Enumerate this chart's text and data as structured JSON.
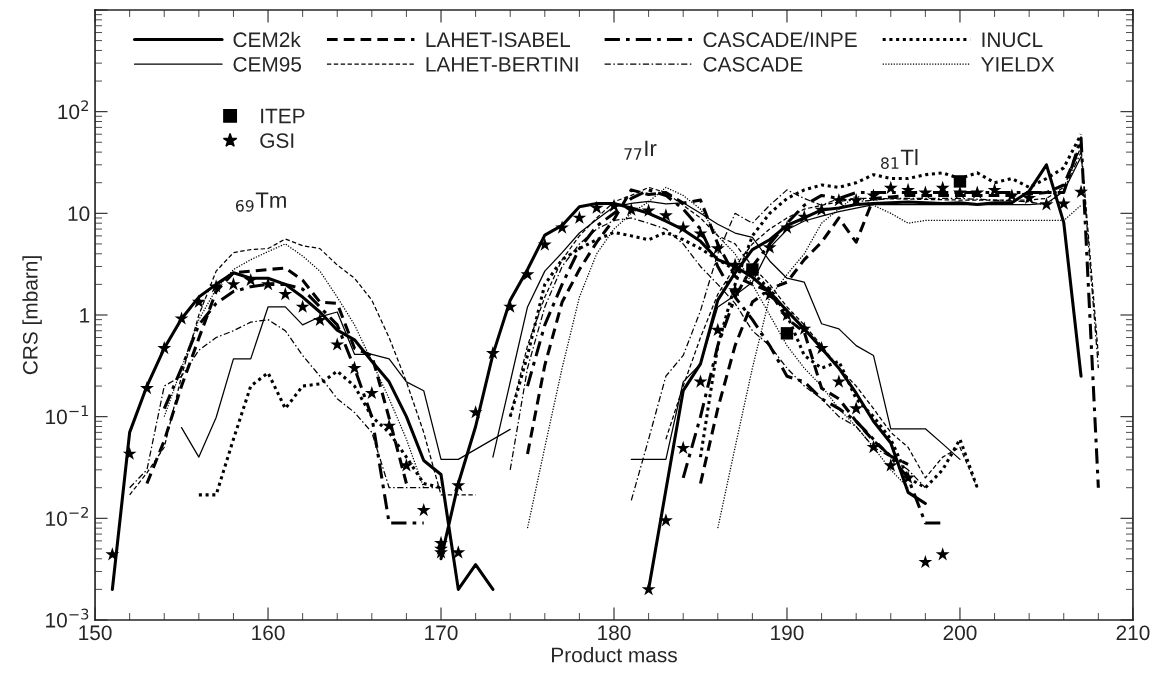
{
  "chart_data": {
    "type": "line",
    "xlabel": "Product mass",
    "ylabel": "CRS [mbarn]",
    "log": "y",
    "grid": false,
    "legend": "top left",
    "marker": "none",
    "xlim": [
      150,
      210
    ],
    "xticks": [
      150,
      160,
      170,
      180,
      190,
      200,
      210
    ],
    "ylim": [
      0.001,
      1000
    ],
    "yticks": [
      {
        "value": 0.001,
        "label": "10$^{−3}$"
      },
      {
        "value": 0.01,
        "label": "10$^{−2}$"
      },
      {
        "value": 0.1,
        "label": "10$^{−1}$"
      },
      1,
      10,
      {
        "value": 100,
        "label": "10$^{2}$"
      },
      {
        "value": 1000,
        "label": null
      }
    ],
    "annotations": [
      "$_{69}$Tm",
      "$_{77}$Ir",
      "$_{81}$Tl"
    ],
    "series": [
      {
        "name": "CEM2k",
        "color": "#000000",
        "line_style": "solid",
        "x": [
          151,
          152,
          153,
          154,
          155,
          156,
          157,
          158,
          159,
          160,
          161,
          162,
          163,
          164,
          165,
          166,
          167,
          168,
          169,
          170,
          171,
          172,
          173,
          null,
          170,
          171,
          172,
          173,
          174,
          175,
          176,
          177,
          178,
          179,
          180,
          181,
          182,
          183,
          184,
          185,
          186,
          187,
          188,
          189,
          190,
          191,
          192,
          193,
          194,
          195,
          196,
          197,
          198,
          null,
          182,
          183,
          184,
          185,
          186,
          187,
          188,
          189,
          190,
          191,
          192,
          193,
          194,
          195,
          196,
          197,
          198,
          199,
          200,
          201,
          202,
          203,
          204,
          205,
          206,
          207
        ],
        "values": [
          0.002,
          0.07,
          0.2,
          0.47,
          0.92,
          1.5,
          2.0,
          2.6,
          2.3,
          2.3,
          2.0,
          1.5,
          1.07,
          0.71,
          0.57,
          0.35,
          0.22,
          0.1,
          0.037,
          0.027,
          0.002,
          0.0035,
          0.002,
          null,
          0.004,
          0.022,
          0.08,
          0.41,
          1.4,
          2.8,
          6.1,
          7.6,
          11.6,
          12.5,
          12.5,
          11.3,
          10,
          8.4,
          6.9,
          5.3,
          3.5,
          3.0,
          2.35,
          1.68,
          1.1,
          0.73,
          0.47,
          0.3,
          0.17,
          0.09,
          0.055,
          0.018,
          0.014,
          null,
          0.002,
          0.019,
          0.18,
          0.33,
          1.4,
          2.6,
          4.4,
          5.5,
          7.6,
          9.0,
          10.8,
          11.3,
          12.2,
          12.5,
          12.7,
          12.9,
          12.7,
          12.5,
          12.7,
          12.2,
          12.7,
          12.7,
          16.5,
          30,
          8.1,
          0.25
        ]
      },
      {
        "name": "CEM95",
        "color": "#000000",
        "line_style": "solid",
        "x": [
          155,
          156,
          157,
          158,
          159,
          160,
          161,
          162,
          163,
          164,
          165,
          166,
          167,
          168,
          169,
          170,
          171,
          174,
          null,
          173,
          175,
          176,
          177,
          178,
          179,
          180,
          181,
          182,
          183,
          184,
          185,
          186,
          187,
          188,
          189,
          190,
          191,
          192,
          193,
          194,
          195,
          196,
          197,
          198,
          199,
          200,
          null,
          181,
          183,
          184,
          185,
          186,
          187,
          188,
          189,
          190,
          191,
          192,
          193,
          195,
          197,
          199,
          201,
          203,
          204,
          205,
          206,
          207
        ],
        "values": [
          0.078,
          0.04,
          0.098,
          0.37,
          0.37,
          1.2,
          1.2,
          0.8,
          0.96,
          1.07,
          0.41,
          0.41,
          0.37,
          0.22,
          0.18,
          0.038,
          0.038,
          0.075,
          null,
          0.04,
          1.2,
          2.7,
          4.1,
          6.4,
          8.7,
          11.6,
          12.5,
          13.1,
          12.4,
          12.7,
          10,
          7.8,
          6.4,
          5.8,
          3.4,
          2.3,
          2.1,
          0.82,
          0.73,
          0.5,
          0.4,
          0.076,
          0.076,
          0.076,
          0.054,
          0.038,
          null,
          0.038,
          0.038,
          0.22,
          0.33,
          1.2,
          1.56,
          2.1,
          4.6,
          6.9,
          8.4,
          9.4,
          10.4,
          12.2,
          12.2,
          12.2,
          12.2,
          12.2,
          12.2,
          12.5,
          16.5,
          36
        ]
      },
      {
        "name": "LAHET-ISABEL",
        "color": "#000000",
        "line_style": "dashed",
        "x": [
          153,
          154,
          155,
          156,
          157,
          158,
          159,
          160,
          161,
          162,
          163,
          164,
          165,
          166,
          167,
          168,
          null,
          175,
          176,
          177,
          178,
          179,
          180,
          181,
          182,
          183,
          184,
          185,
          186,
          187,
          188,
          189,
          190,
          191,
          192,
          193,
          194,
          195,
          196,
          197,
          null,
          185,
          186,
          187,
          188,
          189,
          190,
          191,
          192,
          193,
          194,
          195,
          196,
          197,
          199,
          201,
          203,
          205,
          206,
          207
        ],
        "values": [
          0.022,
          0.058,
          0.2,
          0.59,
          1.7,
          2.6,
          2.7,
          2.8,
          2.9,
          2.2,
          1.34,
          1.3,
          0.47,
          0.4,
          0.097,
          0.022,
          null,
          0.043,
          0.32,
          1.34,
          2.8,
          5.2,
          8.7,
          17,
          15.3,
          16,
          12.6,
          13.5,
          5,
          2.4,
          2,
          1.7,
          0.92,
          0.68,
          0.19,
          0.15,
          0.09,
          0.058,
          0.041,
          0.034,
          null,
          0.022,
          0.12,
          0.5,
          1.34,
          1.8,
          2.1,
          3.5,
          5.2,
          9,
          5.2,
          14,
          14.5,
          15,
          15,
          15,
          15,
          16,
          19,
          48
        ]
      },
      {
        "name": "LAHET-BERTINI",
        "color": "#000000",
        "line_style": "dashed",
        "x": [
          152,
          153,
          154,
          155,
          156,
          157,
          158,
          159,
          160,
          161,
          162,
          163,
          164,
          165,
          166,
          167,
          168,
          169,
          170,
          171,
          172,
          null,
          174,
          175,
          176,
          177,
          178,
          179,
          180,
          181,
          182,
          183,
          184,
          185,
          186,
          187,
          188,
          189,
          190,
          191,
          192,
          193,
          194,
          195,
          196,
          197,
          198,
          199,
          200,
          201,
          null,
          183,
          184,
          185,
          186,
          187,
          188,
          189,
          190,
          191,
          192,
          193,
          194,
          195,
          200,
          204,
          205,
          206,
          207,
          208
        ],
        "values": [
          0.017,
          0.028,
          0.05,
          0.25,
          1.0,
          2.7,
          4.1,
          4.4,
          4.5,
          5.6,
          4.8,
          4.5,
          3.1,
          2.3,
          1.4,
          0.6,
          0.22,
          0.07,
          0.017,
          0.017,
          0.017,
          null,
          0.1,
          0.5,
          1.5,
          3.5,
          6,
          9,
          13,
          15,
          18,
          16,
          12,
          9,
          6,
          5,
          3,
          2,
          1.2,
          0.8,
          0.5,
          0.3,
          0.2,
          0.12,
          0.07,
          0.05,
          0.025,
          0.04,
          0.05,
          0.02,
          null,
          0.06,
          0.2,
          0.6,
          1.6,
          3,
          5,
          7,
          9,
          11,
          12,
          13,
          14,
          14,
          13.5,
          13.5,
          14,
          18,
          45,
          0.4
        ]
      },
      {
        "name": "CASCADE/INPE",
        "color": "#000000",
        "line_style": "dashdot",
        "x": [
          154,
          155,
          156,
          157,
          158,
          159,
          160,
          161,
          162,
          163,
          164,
          165,
          166,
          167,
          168,
          169,
          null,
          175,
          176,
          177,
          178,
          179,
          180,
          181,
          182,
          183,
          184,
          185,
          186,
          187,
          188,
          189,
          190,
          191,
          192,
          193,
          194,
          195,
          196,
          197,
          198,
          199,
          null,
          184,
          185,
          186,
          187,
          188,
          189,
          190,
          191,
          192,
          193,
          194,
          200,
          206,
          207,
          208
        ],
        "values": [
          0.12,
          0.3,
          0.8,
          1.3,
          1.7,
          1.9,
          2.0,
          2.0,
          1.8,
          1.2,
          0.8,
          0.3,
          0.1,
          0.009,
          0.009,
          0.009,
          null,
          0.2,
          0.8,
          2,
          4.5,
          7.5,
          10,
          14,
          17,
          15,
          11,
          7,
          3,
          1.5,
          0.9,
          0.5,
          0.25,
          0.22,
          0.15,
          0.12,
          0.09,
          0.06,
          0.04,
          0.025,
          0.009,
          0.009,
          null,
          0.025,
          0.1,
          0.5,
          1.5,
          3,
          5,
          8,
          12,
          15,
          14,
          16,
          16,
          16,
          55,
          0.02
        ]
      },
      {
        "name": "CASCADE",
        "color": "#000000",
        "line_style": "dashdot",
        "x": [
          152,
          153,
          154,
          155,
          156,
          157,
          158,
          159,
          160,
          161,
          162,
          163,
          164,
          165,
          166,
          167,
          168,
          169,
          170,
          null,
          174,
          175,
          176,
          177,
          178,
          179,
          180,
          181,
          182,
          183,
          184,
          185,
          186,
          187,
          188,
          189,
          190,
          191,
          192,
          193,
          194,
          195,
          196,
          197,
          198,
          null,
          181,
          182,
          183,
          184,
          185,
          186,
          187,
          188,
          189,
          190,
          191,
          192,
          193,
          194,
          196,
          200,
          204,
          205,
          206,
          207,
          208
        ],
        "values": [
          0.02,
          0.03,
          0.2,
          0.25,
          0.45,
          0.6,
          0.7,
          0.85,
          0.9,
          0.7,
          0.4,
          0.25,
          0.15,
          0.11,
          0.07,
          0.02,
          0.02,
          0.02,
          0.02,
          null,
          0.03,
          0.3,
          1.2,
          3,
          5,
          7,
          8.5,
          9,
          8,
          7,
          5,
          3,
          2,
          1.3,
          0.7,
          0.5,
          0.3,
          0.2,
          0.15,
          0.1,
          0.08,
          0.05,
          0.04,
          0.03,
          0.02,
          null,
          0.015,
          0.06,
          0.25,
          0.4,
          1.1,
          4,
          10,
          8,
          12,
          17,
          14,
          12,
          14,
          13,
          14,
          14,
          13,
          12,
          17,
          40,
          0.3
        ]
      },
      {
        "name": "INUCL",
        "color": "#000000",
        "line_style": "dotted",
        "x": [
          156,
          157,
          158,
          159,
          160,
          161,
          162,
          163,
          164,
          165,
          166,
          167,
          168,
          169,
          170,
          null,
          174,
          175,
          176,
          177,
          178,
          179,
          180,
          181,
          182,
          183,
          184,
          185,
          186,
          187,
          188,
          189,
          190,
          191,
          192,
          193,
          194,
          195,
          196,
          197,
          198,
          199,
          200,
          201,
          null,
          185,
          186,
          187,
          188,
          189,
          190,
          191,
          192,
          193,
          194,
          195,
          196,
          197,
          198,
          199,
          200,
          201,
          202,
          203,
          204,
          205,
          206,
          207
        ],
        "values": [
          0.017,
          0.017,
          0.06,
          0.2,
          0.27,
          0.12,
          0.2,
          0.21,
          0.28,
          0.2,
          0.1,
          0.07,
          0.04,
          0.022,
          0.02,
          null,
          0.1,
          0.4,
          2,
          3.5,
          4.5,
          5.5,
          6.5,
          6,
          5.5,
          6.5,
          5.5,
          4.5,
          3.5,
          2.8,
          2.6,
          1.8,
          1.0,
          0.4,
          0.3,
          0.35,
          0.15,
          0.1,
          0.06,
          0.025,
          0.02,
          0.03,
          0.06,
          0.02,
          null,
          0.04,
          0.5,
          2,
          6,
          10,
          14,
          17,
          19,
          18,
          20,
          24,
          22,
          22,
          24,
          25,
          22,
          25,
          20,
          22,
          18,
          22,
          28,
          60
        ]
      },
      {
        "name": "YIELDX",
        "color": "#000000",
        "line_style": "dotted",
        "x": [
          154,
          155,
          156,
          157,
          158,
          159,
          160,
          161,
          162,
          163,
          164,
          165,
          166,
          167,
          168,
          169,
          null,
          175,
          176,
          177,
          178,
          179,
          180,
          181,
          182,
          183,
          184,
          185,
          186,
          187,
          188,
          189,
          190,
          191,
          192,
          193,
          194,
          195,
          196,
          197,
          null,
          186,
          187,
          188,
          189,
          190,
          191,
          192,
          193,
          194,
          195,
          196,
          197,
          198,
          206,
          207
        ],
        "values": [
          0.1,
          0.3,
          0.9,
          1.8,
          2.8,
          3.5,
          4.2,
          5.0,
          3.8,
          2.7,
          1.5,
          0.8,
          0.35,
          0.15,
          0.06,
          0.02,
          null,
          0.008,
          0.05,
          0.3,
          1.5,
          4,
          7,
          10,
          13,
          18,
          15,
          11,
          6,
          4,
          2,
          1,
          0.5,
          0.3,
          0.2,
          0.12,
          0.08,
          0.05,
          0.03,
          0.02,
          null,
          0.008,
          0.05,
          0.3,
          1.5,
          2.5,
          4,
          8,
          11,
          15,
          12,
          10,
          8,
          8.5,
          8.5,
          12
        ]
      },
      {
        "name": "ITEP",
        "type": "scatter",
        "marker": "square",
        "color": "#000000",
        "x": [
          188,
          190,
          200
        ],
        "values": [
          2.8,
          0.66,
          20.6
        ]
      },
      {
        "name": "GSI",
        "type": "scatter",
        "marker": "star",
        "color": "#000000",
        "x": [
          151,
          152,
          153,
          154,
          155,
          156,
          157,
          158,
          159,
          160,
          161,
          162,
          163,
          164,
          165,
          166,
          167,
          168,
          169,
          170,
          170,
          170,
          171,
          171,
          172,
          173,
          174,
          175,
          176,
          177,
          178,
          179,
          180,
          181,
          182,
          183,
          184,
          185,
          186,
          187,
          189,
          190,
          191,
          192,
          193,
          194,
          195,
          196,
          197,
          182,
          183,
          184,
          185,
          186,
          187,
          189,
          190,
          191,
          192,
          193,
          194,
          195,
          196,
          197,
          198,
          199,
          200,
          201,
          202,
          203,
          204,
          205,
          206,
          207,
          198,
          199
        ],
        "values": [
          0.0044,
          0.043,
          0.19,
          0.47,
          0.92,
          1.34,
          1.9,
          2.0,
          2.2,
          2.0,
          1.6,
          1.2,
          0.89,
          0.51,
          0.3,
          0.17,
          0.081,
          0.033,
          0.012,
          0.0057,
          0.005,
          0.0046,
          0.021,
          0.0046,
          0.11,
          0.42,
          1.2,
          2.5,
          4.9,
          7.2,
          9.0,
          11.3,
          11.8,
          10.8,
          10.6,
          9.5,
          7.2,
          6.3,
          4.5,
          3.1,
          1.58,
          1.0,
          0.73,
          0.47,
          0.22,
          0.12,
          0.05,
          0.033,
          0.025,
          0.002,
          0.0095,
          0.049,
          0.22,
          0.71,
          1.74,
          4.6,
          7.2,
          9.2,
          10.8,
          13.4,
          13.4,
          14.9,
          17.7,
          16.9,
          15.9,
          17.7,
          15.9,
          15.9,
          16.9,
          14.9,
          14.1,
          12.2,
          12.4,
          16.2,
          0.0037,
          0.0044
        ]
      }
    ]
  }
}
